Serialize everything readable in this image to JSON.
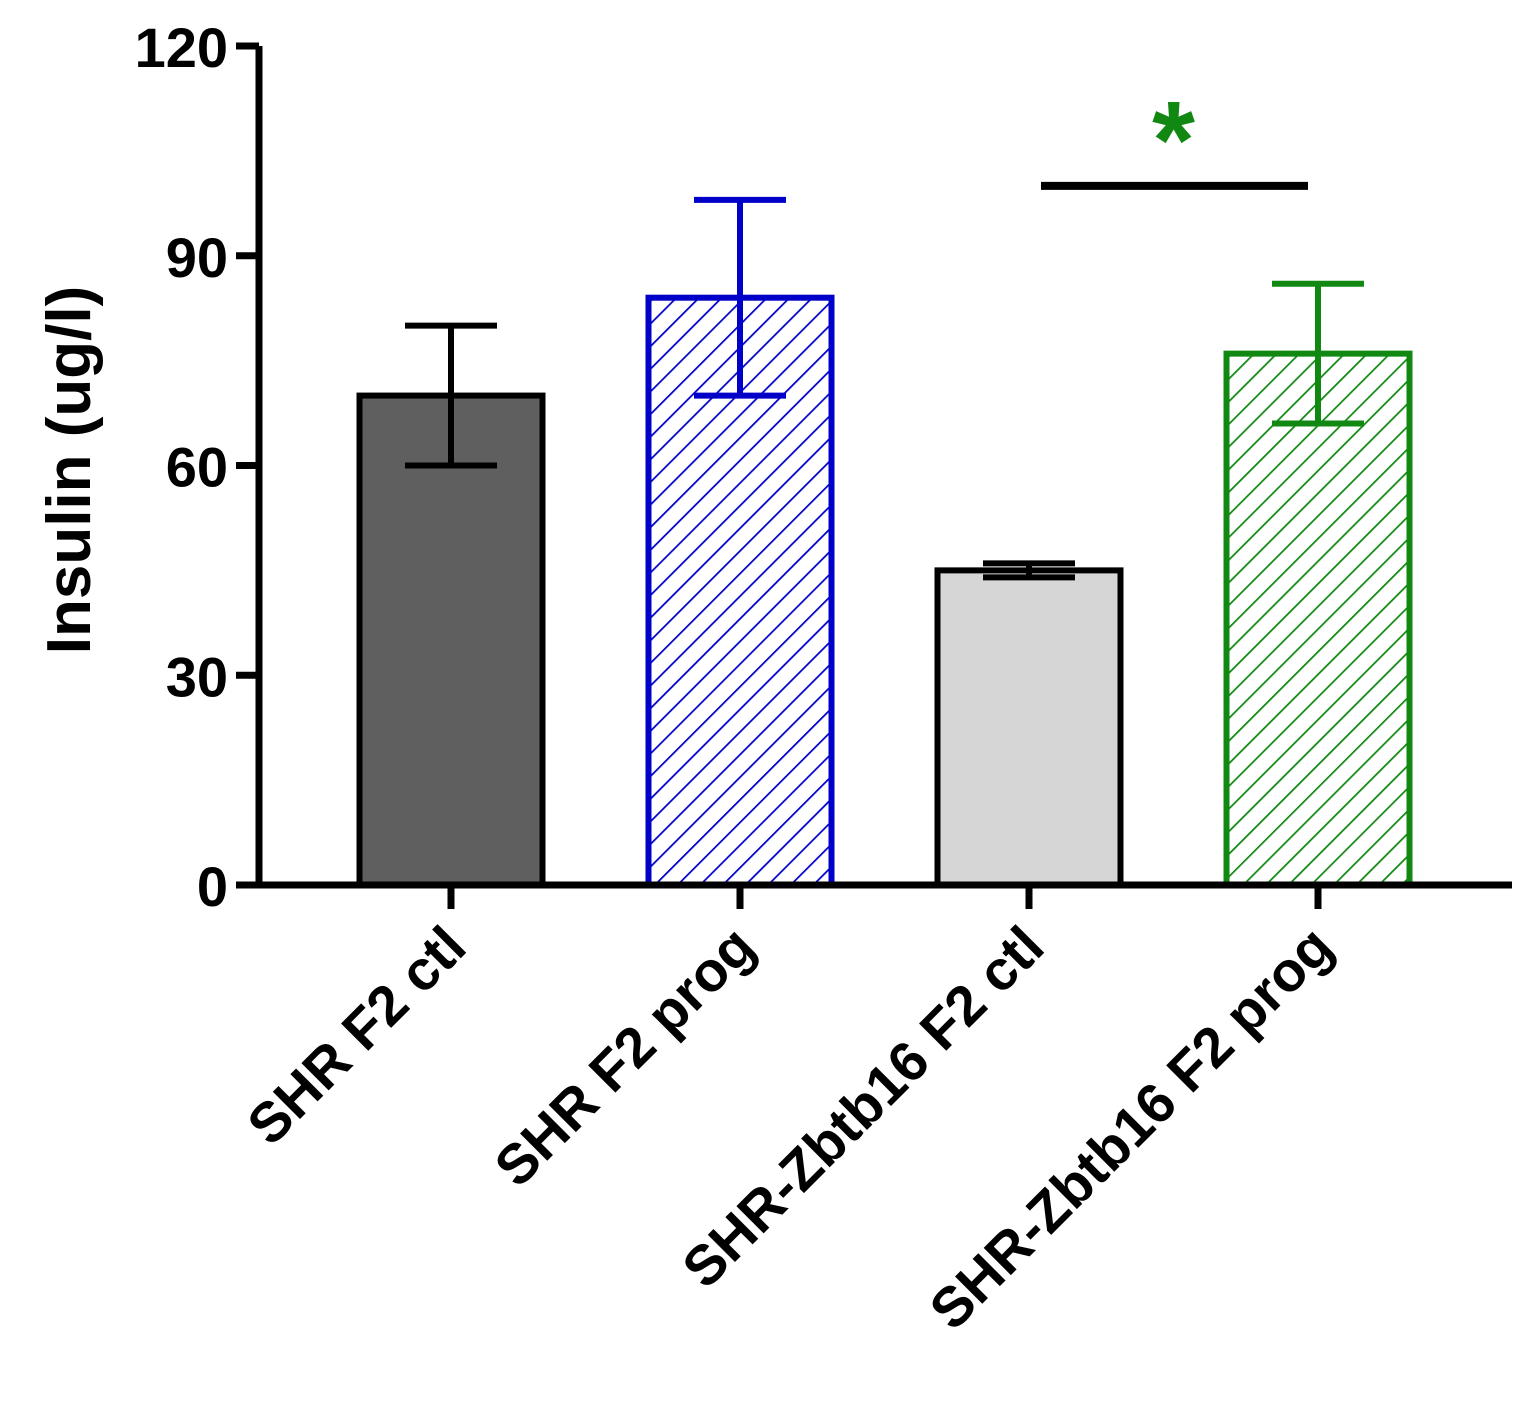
{
  "chart_data": {
    "type": "bar",
    "title": "",
    "xlabel": "",
    "ylabel": "Insulin (ug/l)",
    "ylim": [
      0,
      120
    ],
    "yticks": [
      0,
      30,
      60,
      90,
      120
    ],
    "categories": [
      "SHR F2 ctl",
      "SHR F2 prog",
      "SHR-Zbtb16 F2 ctl",
      "SHR-Zbtb16 F2 prog"
    ],
    "values": [
      70,
      84,
      45,
      76
    ],
    "errors": [
      10,
      14,
      1,
      10
    ],
    "bar_styles": [
      {
        "fill": "#5f5f5f",
        "stroke": "#000000",
        "pattern": "solid"
      },
      {
        "fill": "#ffffff",
        "stroke": "#0000c8",
        "pattern": "hatch"
      },
      {
        "fill": "#d6d6d6",
        "stroke": "#000000",
        "pattern": "solid"
      },
      {
        "fill": "#ffffff",
        "stroke": "#118811",
        "pattern": "hatch"
      }
    ],
    "significance": [
      {
        "from": 2,
        "to": 3,
        "level": 100,
        "label": "*",
        "color": "#118811"
      }
    ]
  }
}
